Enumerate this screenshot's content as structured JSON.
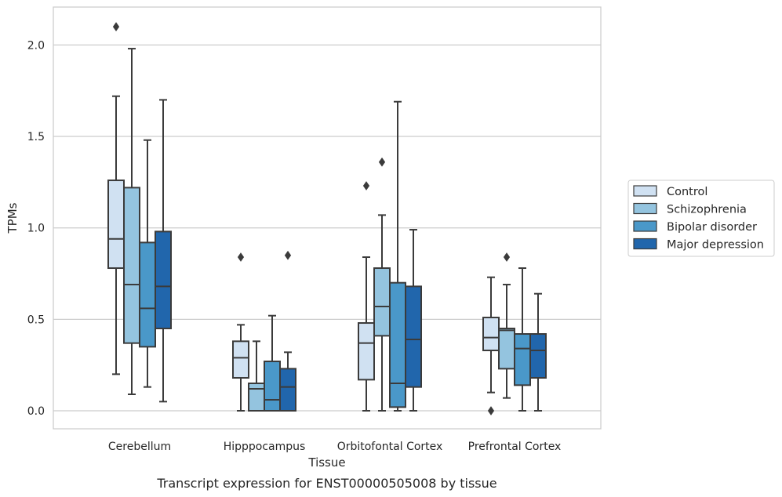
{
  "caption": "Transcript expression for ENST00000505008 by tissue",
  "chart_data": {
    "type": "box",
    "xlabel": "Tissue",
    "ylabel": "TPMs",
    "ylim": [
      -0.1,
      2.22
    ],
    "yticks": [
      "0.0",
      "0.5",
      "1.0",
      "1.5",
      "2.0"
    ],
    "grid": "horizontal",
    "legend_position": "right",
    "categories": [
      "Cerebellum",
      "Hipppocampus",
      "Orbitofontal Cortex",
      "Prefrontal Cortex"
    ],
    "series": [
      {
        "name": "Control",
        "color": "#d0e1f2",
        "boxes": [
          {
            "whislo": 0.2,
            "q1": 0.78,
            "med": 0.94,
            "q3": 1.26,
            "whishi": 1.72,
            "fliers": [
              2.1
            ]
          },
          {
            "whislo": 0.0,
            "q1": 0.18,
            "med": 0.29,
            "q3": 0.38,
            "whishi": 0.47,
            "fliers": [
              0.84
            ]
          },
          {
            "whislo": 0.0,
            "q1": 0.17,
            "med": 0.37,
            "q3": 0.48,
            "whishi": 0.84,
            "fliers": [
              1.23
            ]
          },
          {
            "whislo": 0.1,
            "q1": 0.33,
            "med": 0.4,
            "q3": 0.51,
            "whishi": 0.73,
            "fliers": [
              0.0
            ]
          }
        ]
      },
      {
        "name": "Schizophrenia",
        "color": "#94c4df",
        "boxes": [
          {
            "whislo": 0.09,
            "q1": 0.37,
            "med": 0.69,
            "q3": 1.22,
            "whishi": 1.98,
            "fliers": []
          },
          {
            "whislo": 0.0,
            "q1": 0.0,
            "med": 0.12,
            "q3": 0.15,
            "whishi": 0.38,
            "fliers": []
          },
          {
            "whislo": 0.0,
            "q1": 0.41,
            "med": 0.57,
            "q3": 0.78,
            "whishi": 1.07,
            "fliers": [
              1.36
            ]
          },
          {
            "whislo": 0.07,
            "q1": 0.23,
            "med": 0.44,
            "q3": 0.45,
            "whishi": 0.69,
            "fliers": [
              0.84
            ]
          }
        ]
      },
      {
        "name": "Bipolar disorder",
        "color": "#4a98c9",
        "boxes": [
          {
            "whislo": 0.13,
            "q1": 0.35,
            "med": 0.56,
            "q3": 0.92,
            "whishi": 1.48,
            "fliers": []
          },
          {
            "whislo": 0.0,
            "q1": 0.0,
            "med": 0.06,
            "q3": 0.27,
            "whishi": 0.52,
            "fliers": []
          },
          {
            "whislo": 0.0,
            "q1": 0.02,
            "med": 0.15,
            "q3": 0.7,
            "whishi": 1.69,
            "fliers": []
          },
          {
            "whislo": 0.0,
            "q1": 0.14,
            "med": 0.34,
            "q3": 0.42,
            "whishi": 0.78,
            "fliers": []
          }
        ]
      },
      {
        "name": "Major depression",
        "color": "#2166ac",
        "boxes": [
          {
            "whislo": 0.05,
            "q1": 0.45,
            "med": 0.68,
            "q3": 0.98,
            "whishi": 1.7,
            "fliers": []
          },
          {
            "whislo": 0.0,
            "q1": 0.0,
            "med": 0.13,
            "q3": 0.23,
            "whishi": 0.32,
            "fliers": [
              0.85
            ]
          },
          {
            "whislo": 0.0,
            "q1": 0.13,
            "med": 0.39,
            "q3": 0.68,
            "whishi": 0.99,
            "fliers": []
          },
          {
            "whislo": 0.0,
            "q1": 0.18,
            "med": 0.33,
            "q3": 0.42,
            "whishi": 0.64,
            "fliers": []
          }
        ]
      }
    ]
  }
}
